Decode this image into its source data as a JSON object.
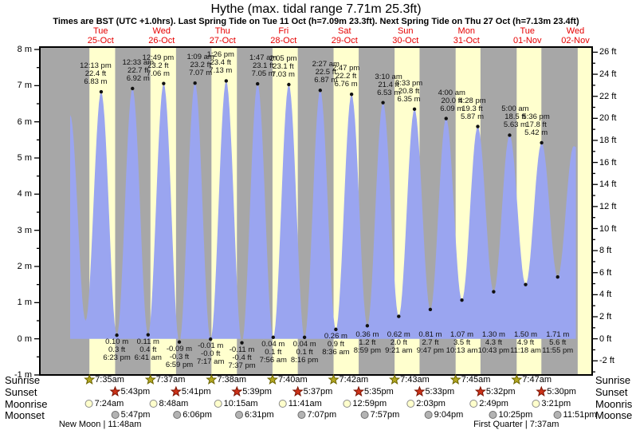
{
  "title": "Hythe (max. tidal range 7.71m 25.3ft)",
  "subtitle": "Times are BST (UTC +1.0hrs). Last Spring Tide on Tue 11 Oct (h=7.09m 23.3ft). Next Spring Tide on Thu 27 Oct (h=7.13m 23.4ft)",
  "colors": {
    "night_band": "#a7a7a7",
    "day_band": "#ffffce",
    "tide_fill": "#9aa5f0",
    "day_label": "#e60000",
    "axis": "#000000",
    "annotation_text": "#111111",
    "sunrise_star_fill": "#b3a71f",
    "sunrise_star_stroke": "#6b6400",
    "sunset_star_fill": "#cc3118",
    "sunset_star_stroke": "#7a1504",
    "moonrise_fill": "#ffffcc",
    "moonrise_stroke": "#8a8a8a",
    "moonset_fill": "#b3b3b3",
    "moonset_stroke": "#6e6e6e",
    "dot": "#111111"
  },
  "chart_data": {
    "type": "area",
    "title": "Hythe (max. tidal range 7.71m 25.3ft)",
    "y_axis_left": {
      "unit": "m",
      "min": -1,
      "max": 8,
      "major_step": 1,
      "minor_step": 0.5
    },
    "y_axis_right": {
      "unit": "ft",
      "min": -2,
      "max": 26,
      "major_step": 2,
      "minor_step": 1
    },
    "grid": false,
    "days": [
      {
        "name": "Tue",
        "date": "25-Oct"
      },
      {
        "name": "Wed",
        "date": "26-Oct"
      },
      {
        "name": "Thu",
        "date": "27-Oct"
      },
      {
        "name": "Fri",
        "date": "28-Oct"
      },
      {
        "name": "Sat",
        "date": "29-Oct"
      },
      {
        "name": "Sun",
        "date": "30-Oct"
      },
      {
        "name": "Mon",
        "date": "31-Oct"
      },
      {
        "name": "Tue",
        "date": "01-Nov"
      },
      {
        "name": "Wed",
        "date": "02-Nov"
      }
    ],
    "high_tides": [
      {
        "day": 0,
        "time": "12:13 pm",
        "ft": "22.4 ft",
        "m": "6.83 m",
        "value_m": 6.83
      },
      {
        "day": 1,
        "time": "12:33 am",
        "ft": "22.7 ft",
        "m": "6.92 m",
        "value_m": 6.92
      },
      {
        "day": 1,
        "time": "12:49 pm",
        "ft": "23.2 ft",
        "m": "7.06 m",
        "value_m": 7.06
      },
      {
        "day": 2,
        "time": "1:09 am",
        "ft": "23.2 ft",
        "m": "7.07 m",
        "value_m": 7.07
      },
      {
        "day": 2,
        "time": "1:26 pm",
        "ft": "23.4 ft",
        "m": "7.13 m",
        "value_m": 7.13
      },
      {
        "day": 3,
        "time": "1:47 am",
        "ft": "23.1 ft",
        "m": "7.05 m",
        "value_m": 7.05
      },
      {
        "day": 3,
        "time": "2:05 pm",
        "ft": "23.1 ft",
        "m": "7.03 m",
        "value_m": 7.03
      },
      {
        "day": 4,
        "time": "2:27 am",
        "ft": "22.5 ft",
        "m": "6.87 m",
        "value_m": 6.87
      },
      {
        "day": 4,
        "time": "2:47 pm",
        "ft": "22.2 ft",
        "m": "6.76 m",
        "value_m": 6.76
      },
      {
        "day": 5,
        "time": "3:10 am",
        "ft": "21.4 ft",
        "m": "6.53 m",
        "value_m": 6.53
      },
      {
        "day": 5,
        "time": "3:33 pm",
        "ft": "20.8 ft",
        "m": "6.35 m",
        "value_m": 6.35
      },
      {
        "day": 6,
        "time": "4:00 am",
        "ft": "20.0 ft",
        "m": "6.09 m",
        "value_m": 6.09
      },
      {
        "day": 6,
        "time": "4:28 pm",
        "ft": "19.3 ft",
        "m": "5.87 m",
        "value_m": 5.87
      },
      {
        "day": 7,
        "time": "5:00 am",
        "ft": "18.5 ft",
        "m": "5.63 m",
        "value_m": 5.63
      },
      {
        "day": 7,
        "time": "5:36 pm",
        "ft": "17.8 ft",
        "m": "5.42 m",
        "value_m": 5.42
      }
    ],
    "low_tides": [
      {
        "day": 0,
        "time": "6:23 pm",
        "ft": "0.3 ft",
        "m": "0.10 m",
        "value_m": 0.1
      },
      {
        "day": 1,
        "time": "6:41 am",
        "ft": "0.4 ft",
        "m": "0.11 m",
        "value_m": 0.11
      },
      {
        "day": 1,
        "time": "6:59 pm",
        "ft": "-0.3 ft",
        "m": "-0.09 m",
        "value_m": -0.09
      },
      {
        "day": 2,
        "time": "7:17 am",
        "ft": "-0.0 ft",
        "m": "-0.01 m",
        "value_m": -0.01
      },
      {
        "day": 2,
        "time": "7:37 pm",
        "ft": "-0.4 ft",
        "m": "-0.11 m",
        "value_m": -0.11
      },
      {
        "day": 3,
        "time": "7:56 am",
        "ft": "0.1 ft",
        "m": "0.04 m",
        "value_m": 0.04
      },
      {
        "day": 3,
        "time": "8:16 pm",
        "ft": "0.1 ft",
        "m": "0.04 m",
        "value_m": 0.04
      },
      {
        "day": 4,
        "time": "8:36 am",
        "ft": "0.9 ft",
        "m": "0.26 m",
        "value_m": 0.26
      },
      {
        "day": 4,
        "time": "8:59 pm",
        "ft": "1.2 ft",
        "m": "0.36 m",
        "value_m": 0.36
      },
      {
        "day": 5,
        "time": "9:21 am",
        "ft": "2.0 ft",
        "m": "0.62 m",
        "value_m": 0.62
      },
      {
        "day": 5,
        "time": "9:47 pm",
        "ft": "2.7 ft",
        "m": "0.81 m",
        "value_m": 0.81
      },
      {
        "day": 6,
        "time": "10:13 am",
        "ft": "3.5 ft",
        "m": "1.07 m",
        "value_m": 1.07
      },
      {
        "day": 6,
        "time": "10:43 pm",
        "ft": "4.3 ft",
        "m": "1.30 m",
        "value_m": 1.3
      },
      {
        "day": 7,
        "time": "11:18 am",
        "ft": "4.9 ft",
        "m": "1.50 m",
        "value_m": 1.5
      },
      {
        "day": 7,
        "time": "11:55 pm",
        "ft": "5.6 ft",
        "m": "1.71 m",
        "value_m": 1.71
      }
    ],
    "curve_endpoints": {
      "start": {
        "day": 0,
        "time": "12:00 am",
        "value_m": 6.19
      },
      "unlabeled_low": {
        "day": 0,
        "time": "6:05 am",
        "value_m": 0.5
      },
      "unlabeled_high": {
        "day": 8,
        "time": "6:14 am",
        "value_m": 5.33
      },
      "end": {
        "day": 8,
        "time": "7:05 am",
        "value_m": 5.3
      }
    }
  },
  "almanac": {
    "rows": [
      "Sunrise",
      "Sunset",
      "Moonrise",
      "Moonset"
    ],
    "sunrise": [
      "7:35am",
      "7:37am",
      "7:38am",
      "7:40am",
      "7:42am",
      "7:43am",
      "7:45am",
      "7:47am"
    ],
    "sunset": [
      "5:43pm",
      "5:41pm",
      "5:39pm",
      "5:37pm",
      "5:35pm",
      "5:33pm",
      "5:32pm",
      "5:30pm"
    ],
    "moonrise": [
      "7:24am",
      "8:48am",
      "10:15am",
      "11:41am",
      "12:59pm",
      "2:03pm",
      "2:49pm",
      "3:21pm"
    ],
    "moonset": [
      "5:47pm",
      "6:06pm",
      "6:31pm",
      "7:07pm",
      "7:57pm",
      "9:04pm",
      "10:25pm",
      "11:51pm"
    ],
    "moon_phases": [
      {
        "label": "New Moon | 11:48am",
        "day": 0,
        "time": "11:48am"
      },
      {
        "label": "First Quarter | 7:37am",
        "day": 7,
        "time": "7:37am"
      }
    ]
  }
}
